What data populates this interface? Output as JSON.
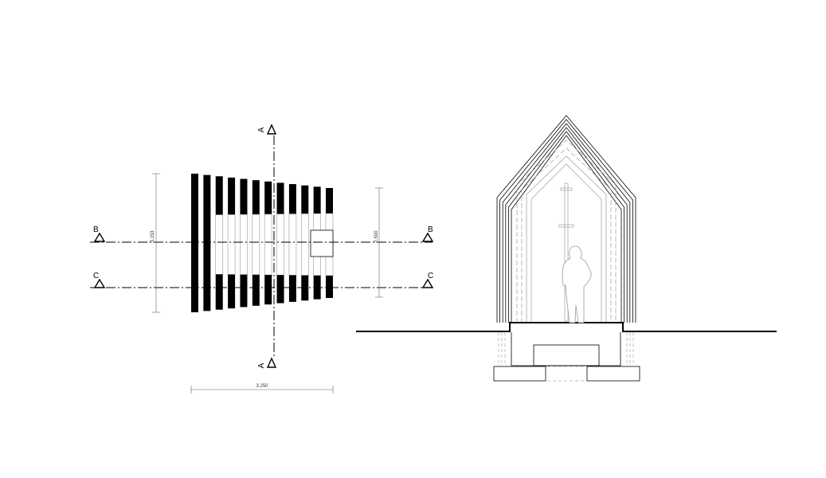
{
  "plan": {
    "section_marks": {
      "a_top": "A",
      "a_bottom": "A",
      "b_left": "B",
      "b_right": "B",
      "c_left": "C",
      "c_right": "C"
    },
    "dimensions": {
      "overall_width": "3.250",
      "left_height": "3.153",
      "right_height": "2.500"
    }
  },
  "colors": {
    "ink": "#000000",
    "hatch": "#999999",
    "background": "#ffffff"
  }
}
